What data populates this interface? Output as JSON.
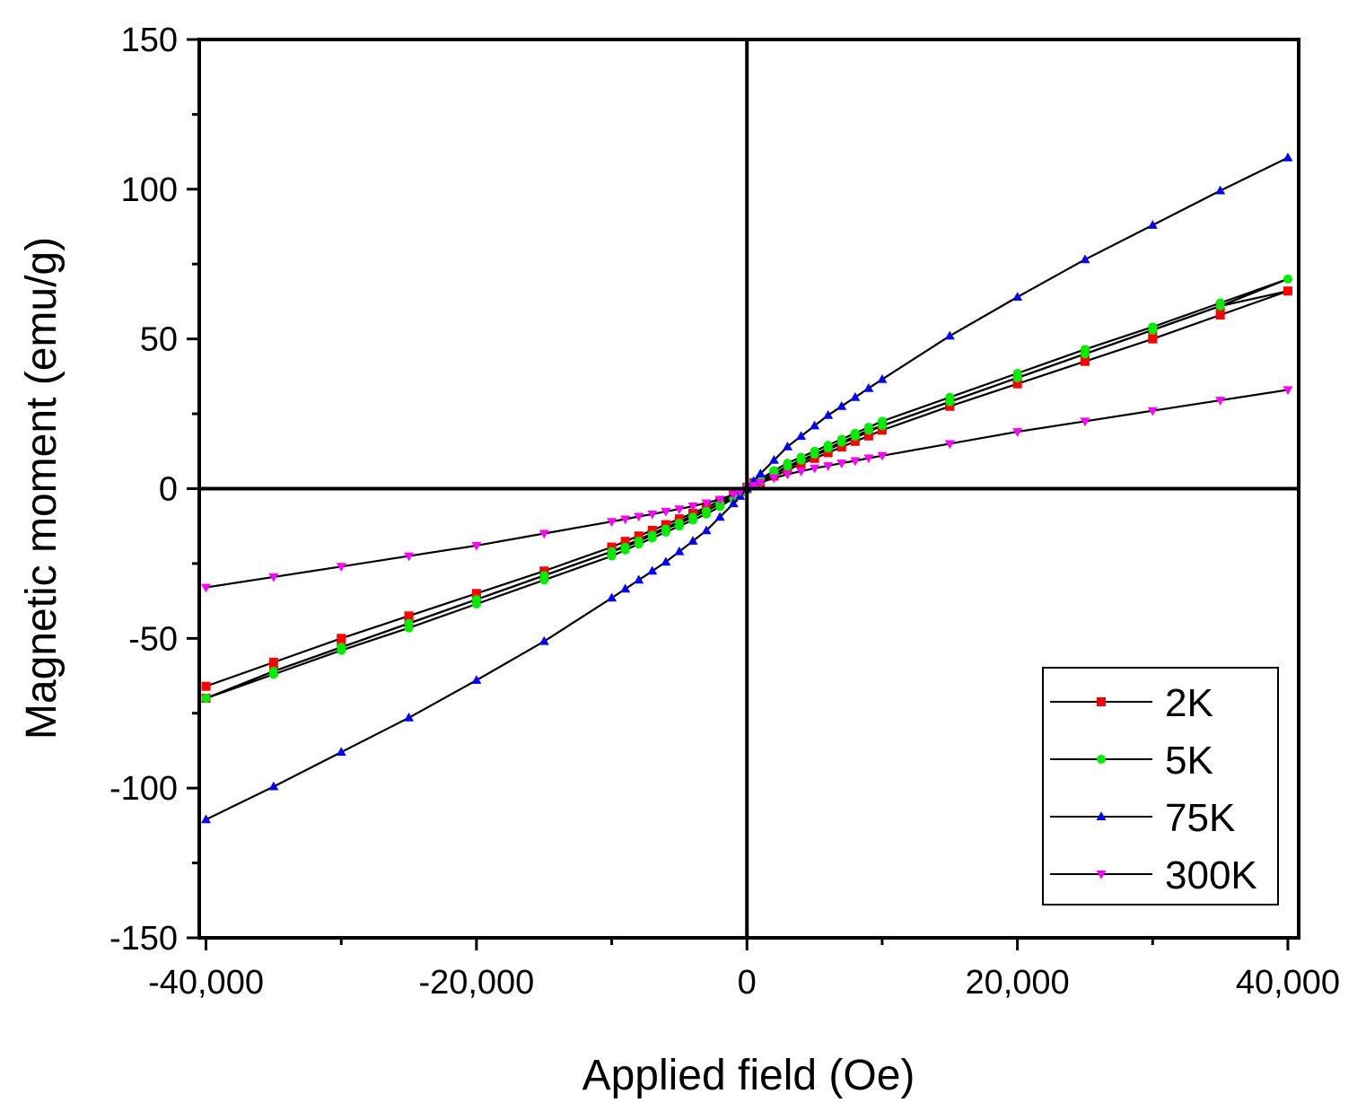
{
  "chart_data": {
    "type": "line",
    "title": "",
    "xlabel": "Applied field (Oe)",
    "ylabel": "Magnetic moment (emu/g)",
    "xlim": [
      -40500,
      40800
    ],
    "ylim": [
      -150,
      150
    ],
    "xticks": [
      -40000,
      -20000,
      0,
      20000,
      40000
    ],
    "xtick_labels": [
      "-40,000",
      "-20,000",
      "0",
      "20,000",
      "40,000"
    ],
    "yticks": [
      -150,
      -100,
      -50,
      0,
      50,
      100,
      150
    ],
    "ytick_labels": [
      "-150",
      "-100",
      "-50",
      "0",
      "50",
      "100",
      "150"
    ],
    "grid": false,
    "zero_lines": true,
    "legend_position": "bottom-right",
    "series": [
      {
        "name": "2K",
        "color": "#ff0000",
        "marker": "square",
        "x": [
          -40000,
          -35000,
          -30000,
          -25000,
          -20000,
          -15000,
          -10000,
          -9000,
          -8000,
          -7000,
          -6000,
          -5000,
          -4000,
          -3000,
          -2000,
          -1000,
          -500,
          0,
          500,
          1000,
          2000,
          3000,
          4000,
          5000,
          6000,
          7000,
          8000,
          9000,
          10000,
          15000,
          20000,
          25000,
          30000,
          35000,
          40000,
          35000,
          30000,
          25000,
          20000,
          15000,
          10000,
          9000,
          8000,
          7000,
          6000,
          5000,
          4000,
          3000,
          2000,
          1000,
          500,
          0,
          -500,
          -1000,
          -2000,
          -3000,
          -4000,
          -5000,
          -6000,
          -7000,
          -8000,
          -9000,
          -10000,
          -15000,
          -20000,
          -25000,
          -30000,
          -35000,
          -40000
        ],
        "y": [
          -66,
          -58,
          -50,
          -42.5,
          -35,
          -27.5,
          -19.5,
          -17.6,
          -15.8,
          -13.9,
          -12,
          -10.1,
          -8.2,
          -6.2,
          -4.2,
          -2.1,
          -1.1,
          0,
          1.1,
          2.1,
          4.2,
          6.2,
          8.2,
          10.1,
          12,
          13.9,
          15.8,
          17.6,
          19.5,
          27.5,
          35,
          42.5,
          50,
          58,
          66,
          61,
          53,
          45,
          37,
          29,
          21,
          19,
          17,
          15,
          13,
          11,
          9,
          7,
          5,
          3,
          2,
          0.5,
          -1,
          -3,
          -5,
          -7,
          -9,
          -11,
          -13,
          -15,
          -17,
          -19,
          -21,
          -29,
          -37,
          -45,
          -53,
          -61,
          -70
        ]
      },
      {
        "name": "5K",
        "color": "#00ee00",
        "marker": "circle",
        "x": [
          -40000,
          -35000,
          -30000,
          -25000,
          -20000,
          -15000,
          -10000,
          -9000,
          -8000,
          -7000,
          -6000,
          -5000,
          -4000,
          -3000,
          -2000,
          -1000,
          -500,
          0,
          500,
          1000,
          2000,
          3000,
          4000,
          5000,
          6000,
          7000,
          8000,
          9000,
          10000,
          15000,
          20000,
          25000,
          30000,
          35000,
          40000,
          35000,
          30000,
          25000,
          20000,
          15000,
          10000,
          9000,
          8000,
          7000,
          6000,
          5000,
          4000,
          3000,
          2000,
          1000,
          500,
          0,
          -500,
          -1000,
          -2000,
          -3000,
          -4000,
          -5000,
          -6000,
          -7000,
          -8000,
          -9000,
          -10000,
          -15000,
          -20000,
          -25000,
          -30000,
          -35000,
          -40000
        ],
        "y": [
          -70,
          -62,
          -54,
          -46.5,
          -38.5,
          -30.5,
          -22.5,
          -20.5,
          -18.5,
          -16.5,
          -14.5,
          -12.5,
          -10.5,
          -8.5,
          -6,
          -3.2,
          -1.8,
          -0.5,
          1,
          2.5,
          5,
          7.5,
          9.5,
          11.5,
          13.5,
          15.5,
          17.5,
          19.5,
          21,
          29,
          37,
          45,
          53,
          61,
          70,
          62,
          54,
          46.5,
          38.5,
          30.5,
          22.5,
          20.5,
          18.5,
          16.5,
          14.5,
          12.5,
          10.5,
          8.5,
          6,
          3.2,
          1.8,
          0.5,
          -1,
          -2.5,
          -5,
          -7.5,
          -9.5,
          -11.5,
          -13.5,
          -15.5,
          -17.5,
          -19.5,
          -21,
          -29,
          -37,
          -45,
          -53,
          -61,
          -70
        ]
      },
      {
        "name": "75K",
        "color": "#0000ff",
        "marker": "triangle-up",
        "x": [
          -40000,
          -35000,
          -30000,
          -25000,
          -20000,
          -15000,
          -10000,
          -9000,
          -8000,
          -7000,
          -6000,
          -5000,
          -4000,
          -3000,
          -2000,
          -1000,
          -500,
          0,
          500,
          1000,
          2000,
          3000,
          4000,
          5000,
          6000,
          7000,
          8000,
          9000,
          10000,
          15000,
          20000,
          25000,
          30000,
          35000,
          40000
        ],
        "y": [
          -110.5,
          -99.5,
          -88,
          -76.5,
          -64,
          -51,
          -36.5,
          -33.5,
          -30.5,
          -27.5,
          -24.5,
          -21,
          -17.5,
          -14,
          -9.5,
          -5,
          -2.5,
          0,
          2.5,
          5,
          9.5,
          14,
          17.5,
          21,
          24.5,
          27.5,
          30.5,
          33.5,
          36.5,
          51,
          64,
          76.5,
          88,
          99.5,
          110.5
        ]
      },
      {
        "name": "300K",
        "color": "#ff00ff",
        "marker": "triangle-down",
        "x": [
          -40000,
          -35000,
          -30000,
          -25000,
          -20000,
          -15000,
          -10000,
          -9000,
          -8000,
          -7000,
          -6000,
          -5000,
          -4000,
          -3000,
          -2000,
          -1000,
          -500,
          0,
          500,
          1000,
          2000,
          3000,
          4000,
          5000,
          6000,
          7000,
          8000,
          9000,
          10000,
          15000,
          20000,
          25000,
          30000,
          35000,
          40000
        ],
        "y": [
          -33,
          -29.5,
          -26,
          -22.5,
          -19,
          -15,
          -11,
          -10.2,
          -9.3,
          -8.5,
          -7.6,
          -6.8,
          -5.8,
          -4.8,
          -3.6,
          -2,
          -1,
          0,
          1,
          2,
          3.6,
          4.8,
          5.8,
          6.8,
          7.6,
          8.5,
          9.3,
          10.2,
          11,
          15,
          19,
          22.5,
          26,
          29.5,
          33
        ]
      }
    ]
  }
}
